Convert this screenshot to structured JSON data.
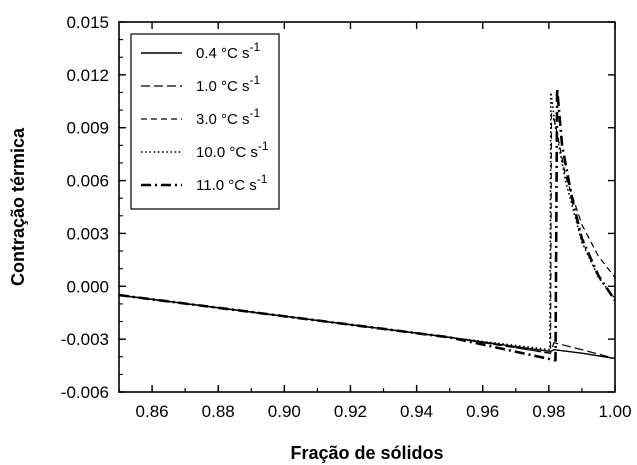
{
  "chart_data": {
    "type": "line",
    "title": "",
    "xlabel": "Fração de sólidos",
    "ylabel": "Contração térmica",
    "xlim": [
      0.85,
      1.0
    ],
    "ylim": [
      -0.006,
      0.015
    ],
    "xticks": [
      0.86,
      0.88,
      0.9,
      0.92,
      0.94,
      0.96,
      0.98,
      1.0
    ],
    "xtick_labels": [
      "0.86",
      "0.88",
      "0.90",
      "0.92",
      "0.94",
      "0.96",
      "0.98",
      "1.00"
    ],
    "yticks": [
      -0.006,
      -0.003,
      0.0,
      0.003,
      0.006,
      0.009,
      0.012,
      0.015
    ],
    "ytick_labels": [
      "-0.006",
      "-0.003",
      "0.000",
      "0.003",
      "0.006",
      "0.009",
      "0.012",
      "0.015"
    ],
    "grid": false,
    "legend_position": "top-left",
    "series": [
      {
        "name": "0.4 °C s-1",
        "legend_main": "0.4 °C s",
        "legend_exp": "-1",
        "dash": "solid",
        "x": [
          0.85,
          0.9,
          0.95,
          0.9805,
          0.9815,
          0.99,
          1.0
        ],
        "y": [
          -0.0005,
          -0.0017,
          -0.0029,
          -0.0037,
          -0.0036,
          -0.0038,
          -0.0041
        ]
      },
      {
        "name": "1.0 °C s-1",
        "legend_main": "1.0 °C s",
        "legend_exp": "-1",
        "dash": "longdash",
        "x": [
          0.85,
          0.9,
          0.95,
          0.9805,
          0.9815,
          0.99,
          1.0
        ],
        "y": [
          -0.0005,
          -0.0017,
          -0.0029,
          -0.0038,
          -0.0032,
          -0.0036,
          -0.0041
        ]
      },
      {
        "name": "3.0 °C s-1",
        "legend_main": "3.0 °C s",
        "legend_exp": "-1",
        "dash": "dashed",
        "x": [
          0.85,
          0.9,
          0.95,
          0.9805,
          0.9808,
          0.982,
          0.985,
          0.99,
          0.995,
          1.0
        ],
        "y": [
          -0.0005,
          -0.0017,
          -0.0029,
          -0.0038,
          0.0098,
          0.0092,
          0.0063,
          0.0035,
          0.0017,
          0.0005
        ]
      },
      {
        "name": "10.0 °C s-1",
        "legend_main": "10.0 °C s",
        "legend_exp": "-1",
        "dash": "dotted",
        "x": [
          0.85,
          0.9,
          0.95,
          0.9803,
          0.9806,
          0.982,
          0.985,
          0.99,
          0.995,
          1.0
        ],
        "y": [
          -0.0005,
          -0.0017,
          -0.0029,
          -0.0036,
          0.011,
          0.009,
          0.006,
          0.0025,
          0.0005,
          -0.0007
        ]
      },
      {
        "name": "11.0 °C s-1",
        "legend_main": "11.0  °C s",
        "legend_exp": "-1",
        "dash": "dashdot",
        "x": [
          0.85,
          0.9,
          0.95,
          0.982,
          0.9825,
          0.984,
          0.987,
          0.99,
          0.995,
          1.0
        ],
        "y": [
          -0.0005,
          -0.0017,
          -0.0029,
          -0.0042,
          0.0112,
          0.008,
          0.005,
          0.0027,
          0.0006,
          -0.0008
        ]
      }
    ]
  }
}
